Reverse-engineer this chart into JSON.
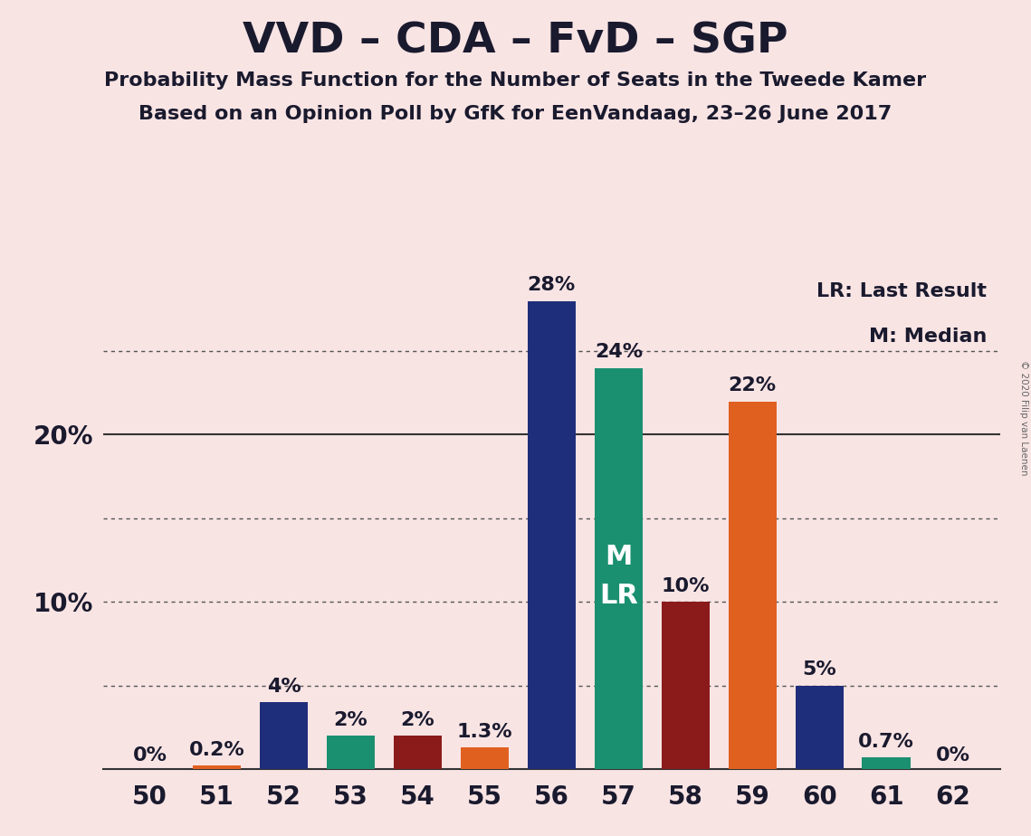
{
  "title": "VVD – CDA – FvD – SGP",
  "subtitle1": "Probability Mass Function for the Number of Seats in the Tweede Kamer",
  "subtitle2": "Based on an Opinion Poll by GfK for EenVandaag, 23–26 June 2017",
  "copyright": "© 2020 Filip van Laenen",
  "legend_lr": "LR: Last Result",
  "legend_m": "M: Median",
  "background_color": "#f9e4e4",
  "seats": [
    50,
    51,
    52,
    53,
    54,
    55,
    56,
    57,
    58,
    59,
    60,
    61,
    62
  ],
  "values": [
    0.0,
    0.2,
    4.0,
    2.0,
    2.0,
    1.3,
    28.0,
    24.0,
    10.0,
    22.0,
    5.0,
    0.7,
    0.0
  ],
  "labels": [
    "0%",
    "0.2%",
    "4%",
    "2%",
    "2%",
    "1.3%",
    "28%",
    "24%",
    "10%",
    "22%",
    "5%",
    "0.7%",
    "0%"
  ],
  "bar_colors": [
    "#1f2e7a",
    "#e06020",
    "#1f2e7a",
    "#1a9070",
    "#8b1a1a",
    "#e06020",
    "#1f2e7a",
    "#1a9070",
    "#8b1a1a",
    "#e06020",
    "#1f2e7a",
    "#1a9070",
    "#1f2e7a"
  ],
  "median_seat": 57,
  "lr_seat": 57,
  "ylim_max": 30,
  "dotted_lines": [
    5.0,
    10.0,
    15.0,
    25.0
  ],
  "solid_line": 20.0,
  "title_fontsize": 34,
  "subtitle_fontsize": 16,
  "axis_fontsize": 20,
  "label_fontsize": 16,
  "bar_width": 0.72
}
